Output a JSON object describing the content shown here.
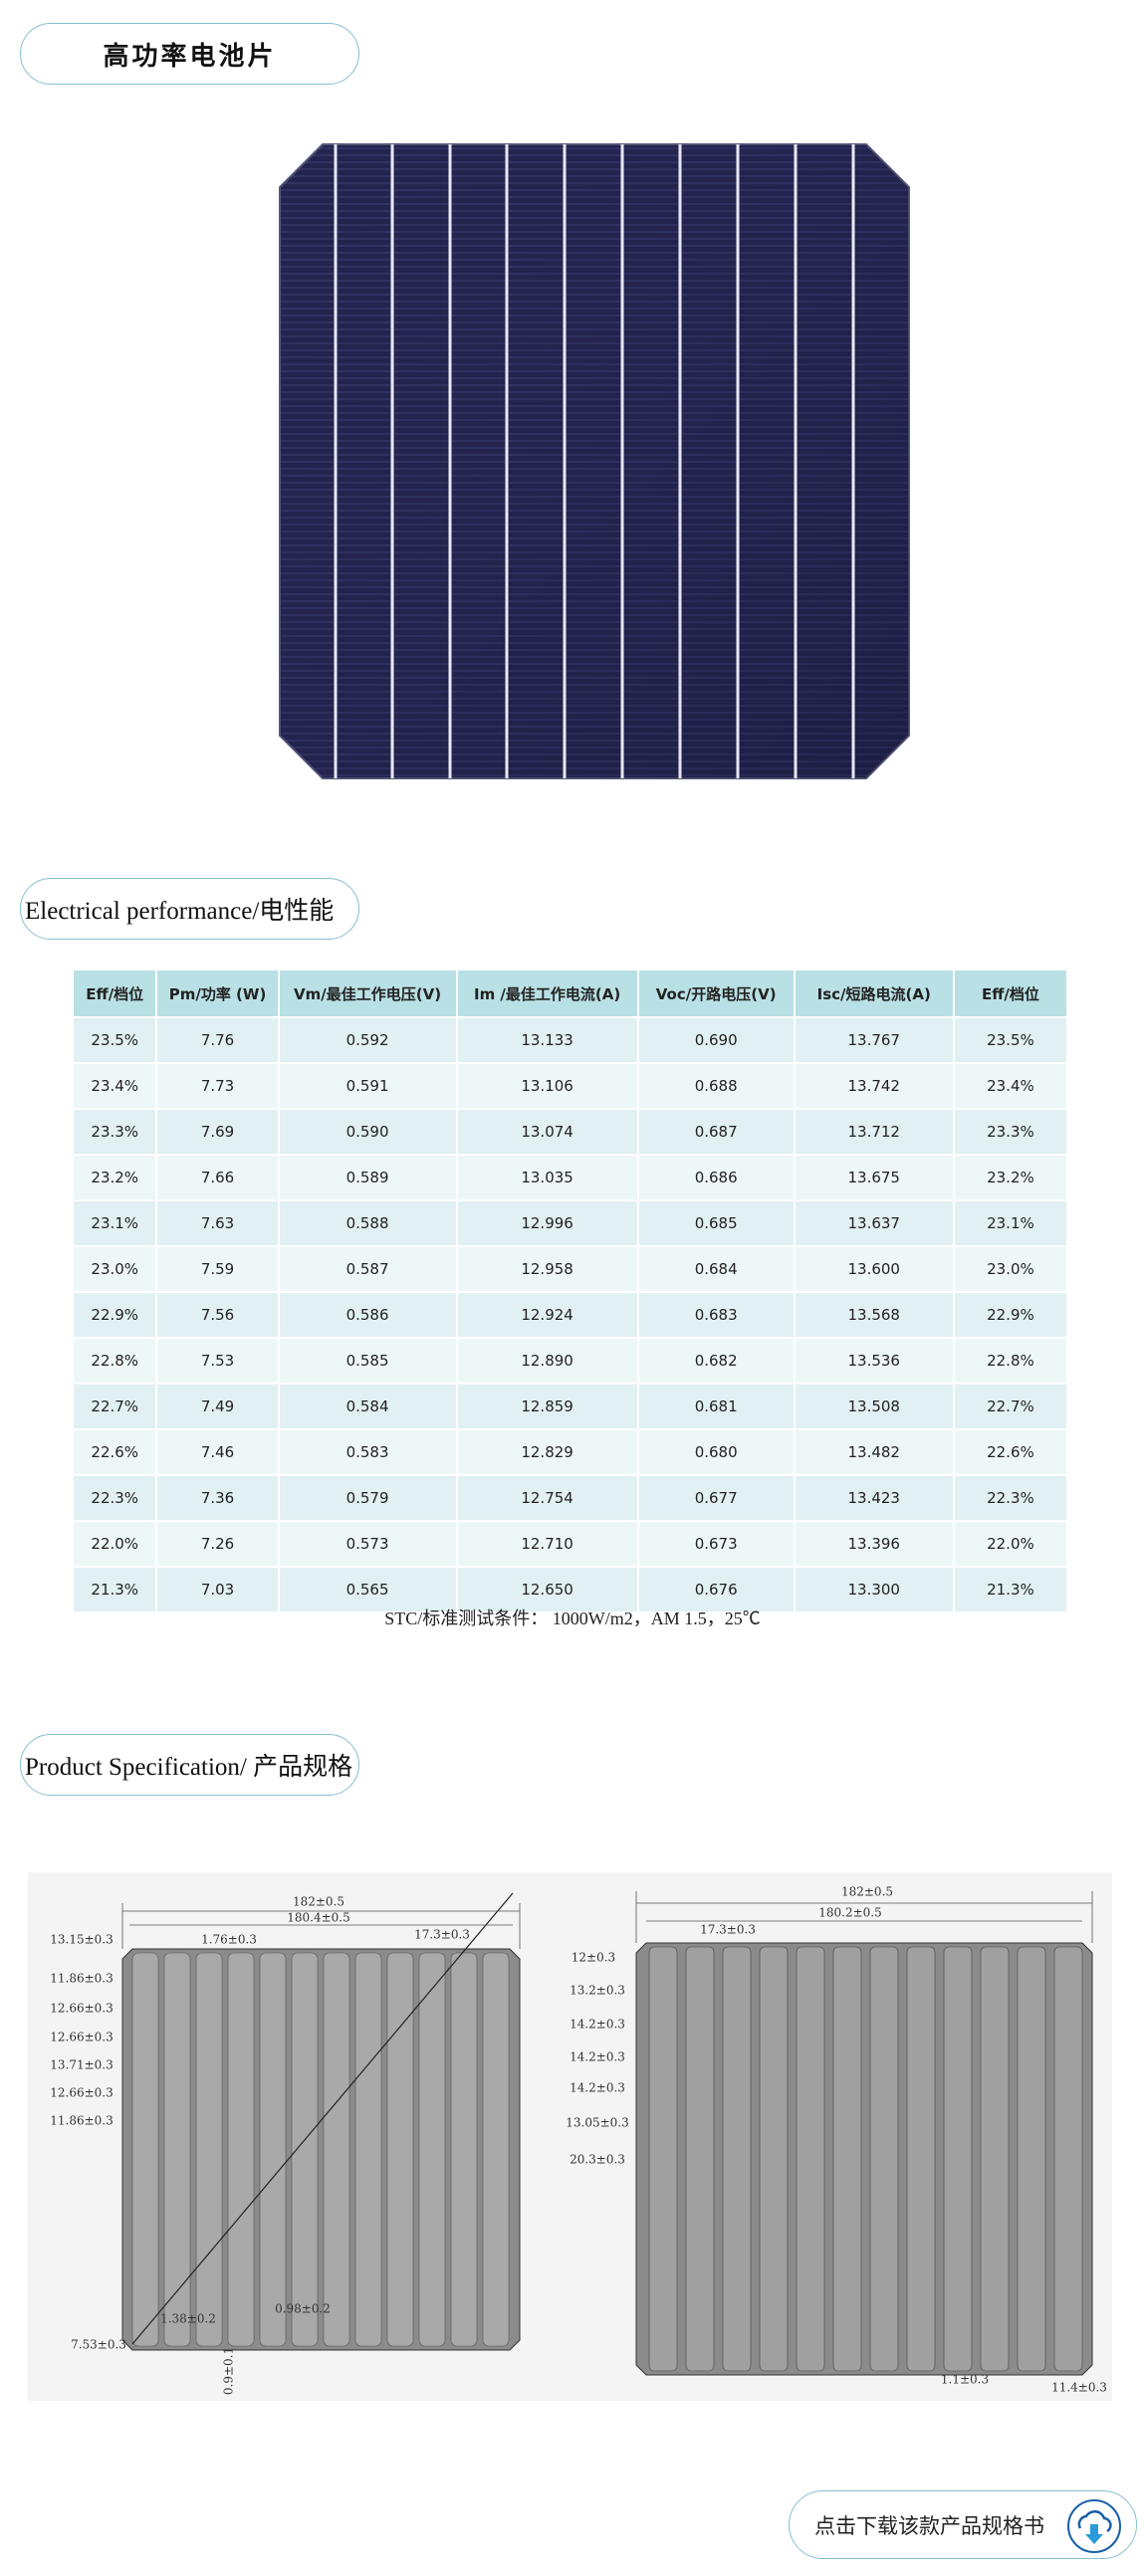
{
  "header": {
    "title": "高功率电池片"
  },
  "electrical": {
    "title": "Electrical performance/电性能",
    "table": {
      "columns": [
        "Eff/档位",
        "Pm/功率 (W)",
        "Vm/最佳工作电压(V)",
        "Im /最佳工作电流(A)",
        "Voc/开路电压(V)",
        "Isc/短路电流(A)",
        "Eff/档位"
      ],
      "rows": [
        [
          "23.5%",
          "7.76",
          "0.592",
          "13.133",
          "0.690",
          "13.767",
          "23.5%"
        ],
        [
          "23.4%",
          "7.73",
          "0.591",
          "13.106",
          "0.688",
          "13.742",
          "23.4%"
        ],
        [
          "23.3%",
          "7.69",
          "0.590",
          "13.074",
          "0.687",
          "13.712",
          "23.3%"
        ],
        [
          "23.2%",
          "7.66",
          "0.589",
          "13.035",
          "0.686",
          "13.675",
          "23.2%"
        ],
        [
          "23.1%",
          "7.63",
          "0.588",
          "12.996",
          "0.685",
          "13.637",
          "23.1%"
        ],
        [
          "23.0%",
          "7.59",
          "0.587",
          "12.958",
          "0.684",
          "13.600",
          "23.0%"
        ],
        [
          "22.9%",
          "7.56",
          "0.586",
          "12.924",
          "0.683",
          "13.568",
          "22.9%"
        ],
        [
          "22.8%",
          "7.53",
          "0.585",
          "12.890",
          "0.682",
          "13.536",
          "22.8%"
        ],
        [
          "22.7%",
          "7.49",
          "0.584",
          "12.859",
          "0.681",
          "13.508",
          "22.7%"
        ],
        [
          "22.6%",
          "7.46",
          "0.583",
          "12.829",
          "0.680",
          "13.482",
          "22.6%"
        ],
        [
          "22.3%",
          "7.36",
          "0.579",
          "12.754",
          "0.677",
          "13.423",
          "22.3%"
        ],
        [
          "22.0%",
          "7.26",
          "0.573",
          "12.710",
          "0.673",
          "13.396",
          "22.0%"
        ],
        [
          "21.3%",
          "7.03",
          "0.565",
          "12.650",
          "0.676",
          "13.300",
          "21.3%"
        ]
      ]
    },
    "note": "STC/标准测试条件： 1000W/m2，AM 1.5，25℃"
  },
  "specification": {
    "title": "Product Specification/ 产品规格",
    "front_drawing": {
      "labels": [
        "182±0.5",
        "180.4±0.5",
        "13.15±0.3",
        "1.76±0.3",
        "17.3±0.3",
        "11.86±0.3",
        "12.66±0.3",
        "12.66±0.3",
        "13.71±0.3",
        "12.66±0.3",
        "11.86±0.3",
        "7.53±0.3",
        "1.38±0.2",
        "0.98±0.2",
        "0.9±0.1"
      ]
    },
    "back_drawing": {
      "labels": [
        "182±0.5",
        "180.2±0.5",
        "17.3±0.3",
        "12±0.3",
        "13.2±0.3",
        "14.2±0.3",
        "14.2±0.3",
        "14.2±0.3",
        "13.05±0.3",
        "20.3±0.3",
        "1.1±0.3",
        "11.4±0.3"
      ]
    }
  },
  "download": {
    "label": "点击下载该款产品规格书"
  }
}
